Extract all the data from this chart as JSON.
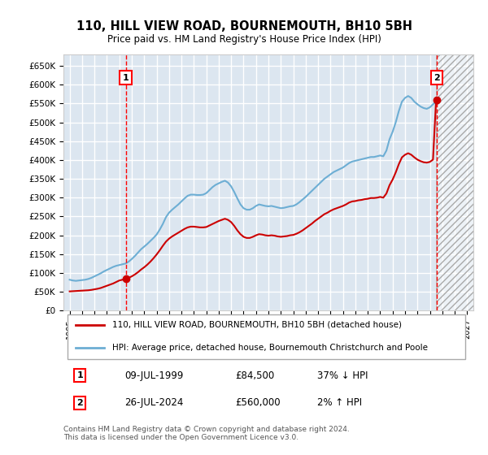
{
  "title": "110, HILL VIEW ROAD, BOURNEMOUTH, BH10 5BH",
  "subtitle": "Price paid vs. HM Land Registry's House Price Index (HPI)",
  "ylabel": "",
  "background_color": "#dce6f0",
  "plot_bg_color": "#dce6f0",
  "grid_color": "#ffffff",
  "hpi_color": "#6daed4",
  "price_color": "#cc0000",
  "sale1_date": 1999.52,
  "sale1_price": 84500,
  "sale2_date": 2024.56,
  "sale2_price": 560000,
  "ylim": [
    0,
    680000
  ],
  "xlim_start": 1994.5,
  "xlim_end": 2027.5,
  "legend_line1": "110, HILL VIEW ROAD, BOURNEMOUTH, BH10 5BH (detached house)",
  "legend_line2": "HPI: Average price, detached house, Bournemouth Christchurch and Poole",
  "annotation1_date": "09-JUL-1999",
  "annotation1_price": "£84,500",
  "annotation1_hpi": "37% ↓ HPI",
  "annotation2_date": "26-JUL-2024",
  "annotation2_price": "£560,000",
  "annotation2_hpi": "2% ↑ HPI",
  "footer": "Contains HM Land Registry data © Crown copyright and database right 2024.\nThis data is licensed under the Open Government Licence v3.0.",
  "hpi_data_x": [
    1995.0,
    1995.25,
    1995.5,
    1995.75,
    1996.0,
    1996.25,
    1996.5,
    1996.75,
    1997.0,
    1997.25,
    1997.5,
    1997.75,
    1998.0,
    1998.25,
    1998.5,
    1998.75,
    1999.0,
    1999.25,
    1999.5,
    1999.75,
    2000.0,
    2000.25,
    2000.5,
    2000.75,
    2001.0,
    2001.25,
    2001.5,
    2001.75,
    2002.0,
    2002.25,
    2002.5,
    2002.75,
    2003.0,
    2003.25,
    2003.5,
    2003.75,
    2004.0,
    2004.25,
    2004.5,
    2004.75,
    2005.0,
    2005.25,
    2005.5,
    2005.75,
    2006.0,
    2006.25,
    2006.5,
    2006.75,
    2007.0,
    2007.25,
    2007.5,
    2007.75,
    2008.0,
    2008.25,
    2008.5,
    2008.75,
    2009.0,
    2009.25,
    2009.5,
    2009.75,
    2010.0,
    2010.25,
    2010.5,
    2010.75,
    2011.0,
    2011.25,
    2011.5,
    2011.75,
    2012.0,
    2012.25,
    2012.5,
    2012.75,
    2013.0,
    2013.25,
    2013.5,
    2013.75,
    2014.0,
    2014.25,
    2014.5,
    2014.75,
    2015.0,
    2015.25,
    2015.5,
    2015.75,
    2016.0,
    2016.25,
    2016.5,
    2016.75,
    2017.0,
    2017.25,
    2017.5,
    2017.75,
    2018.0,
    2018.25,
    2018.5,
    2018.75,
    2019.0,
    2019.25,
    2019.5,
    2019.75,
    2020.0,
    2020.25,
    2020.5,
    2020.75,
    2021.0,
    2021.25,
    2021.5,
    2021.75,
    2022.0,
    2022.25,
    2022.5,
    2022.75,
    2023.0,
    2023.25,
    2023.5,
    2023.75,
    2024.0,
    2024.25,
    2024.5
  ],
  "hpi_data_y": [
    82000,
    80000,
    79000,
    80000,
    81000,
    82000,
    84000,
    87000,
    91000,
    95000,
    99000,
    104000,
    108000,
    112000,
    116000,
    119000,
    121000,
    123000,
    125000,
    130000,
    137000,
    145000,
    154000,
    163000,
    170000,
    177000,
    185000,
    193000,
    202000,
    215000,
    230000,
    248000,
    260000,
    268000,
    275000,
    282000,
    290000,
    298000,
    305000,
    308000,
    308000,
    307000,
    307000,
    308000,
    312000,
    320000,
    328000,
    334000,
    338000,
    342000,
    345000,
    340000,
    330000,
    315000,
    298000,
    282000,
    272000,
    268000,
    268000,
    272000,
    278000,
    282000,
    280000,
    278000,
    277000,
    278000,
    276000,
    274000,
    272000,
    273000,
    275000,
    277000,
    278000,
    282000,
    288000,
    295000,
    302000,
    310000,
    318000,
    326000,
    334000,
    342000,
    350000,
    356000,
    362000,
    368000,
    372000,
    376000,
    380000,
    386000,
    392000,
    396000,
    398000,
    400000,
    402000,
    404000,
    406000,
    408000,
    408000,
    410000,
    412000,
    410000,
    425000,
    455000,
    475000,
    500000,
    530000,
    555000,
    565000,
    570000,
    565000,
    555000,
    548000,
    542000,
    538000,
    536000,
    540000,
    548000,
    555000
  ],
  "price_data_x": [
    1995.0,
    1995.25,
    1995.5,
    1995.75,
    1996.0,
    1996.25,
    1996.5,
    1996.75,
    1997.0,
    1997.25,
    1997.5,
    1997.75,
    1998.0,
    1998.25,
    1998.5,
    1998.75,
    1999.0,
    1999.25,
    1999.5,
    1999.75,
    2000.0,
    2000.25,
    2000.5,
    2000.75,
    2001.0,
    2001.25,
    2001.5,
    2001.75,
    2002.0,
    2002.25,
    2002.5,
    2002.75,
    2003.0,
    2003.25,
    2003.5,
    2003.75,
    2004.0,
    2004.25,
    2004.5,
    2004.75,
    2005.0,
    2005.25,
    2005.5,
    2005.75,
    2006.0,
    2006.25,
    2006.5,
    2006.75,
    2007.0,
    2007.25,
    2007.5,
    2007.75,
    2008.0,
    2008.25,
    2008.5,
    2008.75,
    2009.0,
    2009.25,
    2009.5,
    2009.75,
    2010.0,
    2010.25,
    2010.5,
    2010.75,
    2011.0,
    2011.25,
    2011.5,
    2011.75,
    2012.0,
    2012.25,
    2012.5,
    2012.75,
    2013.0,
    2013.25,
    2013.5,
    2013.75,
    2014.0,
    2014.25,
    2014.5,
    2014.75,
    2015.0,
    2015.25,
    2015.5,
    2015.75,
    2016.0,
    2016.25,
    2016.5,
    2016.75,
    2017.0,
    2017.25,
    2017.5,
    2017.75,
    2018.0,
    2018.25,
    2018.5,
    2018.75,
    2019.0,
    2019.25,
    2019.5,
    2019.75,
    2020.0,
    2020.25,
    2020.5,
    2020.75,
    2021.0,
    2021.25,
    2021.5,
    2021.75,
    2022.0,
    2022.25,
    2022.5,
    2022.75,
    2023.0,
    2023.25,
    2023.5,
    2023.75,
    2024.0,
    2024.25,
    2024.5
  ],
  "price_data_y": [
    51000,
    51500,
    52000,
    52500,
    53000,
    53500,
    54000,
    55000,
    56500,
    58000,
    60000,
    63000,
    66000,
    69000,
    72000,
    76000,
    80000,
    82000,
    84500,
    87000,
    91000,
    96000,
    102000,
    109000,
    115000,
    122000,
    130000,
    139000,
    149000,
    160000,
    172000,
    183000,
    191000,
    197000,
    202000,
    207000,
    212000,
    217000,
    221000,
    223000,
    223000,
    222000,
    221000,
    221000,
    222000,
    226000,
    230000,
    234000,
    238000,
    241000,
    244000,
    241000,
    235000,
    225000,
    213000,
    203000,
    196000,
    193000,
    193000,
    196000,
    200000,
    203000,
    202000,
    200000,
    199000,
    200000,
    199000,
    197000,
    196000,
    197000,
    198000,
    200000,
    201000,
    204000,
    208000,
    213000,
    219000,
    225000,
    231000,
    238000,
    244000,
    250000,
    256000,
    260000,
    265000,
    269000,
    272000,
    275000,
    278000,
    282000,
    287000,
    290000,
    291000,
    293000,
    294000,
    296000,
    297000,
    299000,
    299000,
    300000,
    302000,
    300000,
    311000,
    333000,
    348000,
    367000,
    389000,
    407000,
    414000,
    418000,
    414000,
    407000,
    401000,
    397000,
    394000,
    393000,
    395000,
    401000,
    560000
  ]
}
